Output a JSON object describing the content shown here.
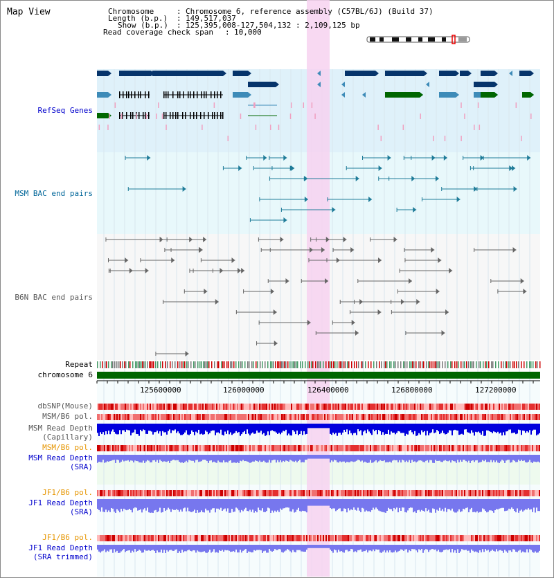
{
  "title": "Map View",
  "info": {
    "chromosome_label": "Chromosome",
    "chromosome_value": "Chromosome 6, reference assembly (C57BL/6J) (Build 37)",
    "length_label": "Length (b.p.)",
    "length_value": "149,517,037",
    "show_label": "Show (b.p.)",
    "show_value": "125,395,008-127,504,132 : 2,109,125 bp",
    "span_label": "Read coverage check span",
    "span_value": "10,000"
  },
  "tracks": {
    "refseq": "RefSeq Genes",
    "msm_bac": "MSM BAC end pairs",
    "b6n_bac": "B6N BAC end pairs",
    "repeat": "Repeat",
    "chromosome": "chromosome 6",
    "dbsnp": "dbSNP(Mouse)",
    "msm_b6_pol_1": "MSM/B6 pol.",
    "msm_depth_cap_1": "MSM Read Depth",
    "msm_depth_cap_2": "(Capillary)",
    "msm_b6_pol_2": "MSM/B6 pol.",
    "msm_depth_sra_1": "MSM Read Depth",
    "msm_depth_sra_2": "(SRA)",
    "jf1_b6_pol_1": "JF1/B6 pol.",
    "jf1_depth_sra_1": "JF1 Read Depth",
    "jf1_depth_sra_2": "(SRA)",
    "jf1_b6_pol_2": "JF1/B6 pol.",
    "jf1_depth_trim_1": "JF1 Read Depth",
    "jf1_depth_trim_2": "(SRA trimmed)"
  },
  "axis_ticks": [
    "125600000",
    "126000000",
    "126400000",
    "126800000",
    "127200000"
  ],
  "colors": {
    "gene_navy": "#06346b",
    "gene_mid": "#3d8bb8",
    "gene_green": "#006600",
    "refseq_bg": "#dff1fa",
    "msm_bg": "#e8f8fb",
    "b6n_bg": "#f7f7f7",
    "highlight": "#f7d2f0",
    "chromosome": "#006600",
    "pol_red": "#ee3333",
    "depth_dark": "#0000dd",
    "depth_light": "#7777ee"
  }
}
